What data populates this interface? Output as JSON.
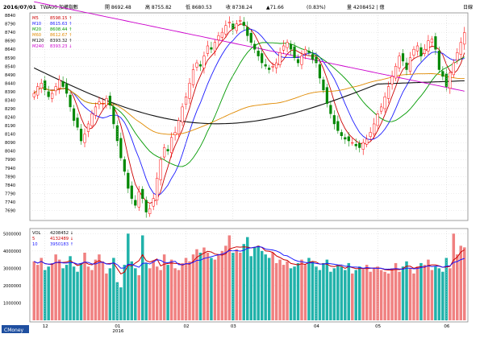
{
  "header": {
    "date": "2016/07/01",
    "symbol": "TWA00 加權指數",
    "items": [
      {
        "label": "開",
        "value": "8692.48"
      },
      {
        "label": "高",
        "value": "8755.82"
      },
      {
        "label": "低",
        "value": "8680.53"
      },
      {
        "label": "收",
        "value": "8738.24"
      },
      {
        "label": "",
        "value": "▲71.66"
      },
      {
        "label": "",
        "value": "(0.83%)"
      },
      {
        "label": "量",
        "value": "4208452 | 億"
      }
    ],
    "period": "日線"
  },
  "price_legend": [
    {
      "name": "M5",
      "value": "8598.15 ↑",
      "color": "#cc0000"
    },
    {
      "name": "M10",
      "value": "8615.63 ↑",
      "color": "#1a1aff"
    },
    {
      "name": "M20",
      "value": "8608.44 ↑",
      "color": "#009900"
    },
    {
      "name": "M60",
      "value": "8612.67 ↑",
      "color": "#e08a00"
    },
    {
      "name": "M120",
      "value": "8393.32 ↑",
      "color": "#111111"
    },
    {
      "name": "M240",
      "value": "8393.23 ↓",
      "color": "#cc00cc"
    }
  ],
  "volume_legend": [
    {
      "name": "VOL",
      "value": "4208452 ↓",
      "color": "#111111"
    },
    {
      "name": "5",
      "value": "4132489 ↓",
      "color": "#cc0000"
    },
    {
      "name": "10",
      "value": "3950183 ↑",
      "color": "#1a1aff"
    }
  ],
  "footer": {
    "brand": "CMoney"
  },
  "chart_data": [
    {
      "type": "candlestick",
      "y_ticks": [
        "8840",
        "8790",
        "8740",
        "8690",
        "8640",
        "8590",
        "8540",
        "8490",
        "8440",
        "8390",
        "8340",
        "8290",
        "8240",
        "8190",
        "8140",
        "8090",
        "8040",
        "7990",
        "7940",
        "7890",
        "7840",
        "7790",
        "7740",
        "7690"
      ],
      "ylim": [
        7640,
        8845
      ],
      "x_ticks": [
        {
          "label": "12",
          "index": 3
        },
        {
          "label": "01",
          "index": 23
        },
        {
          "label": "2016",
          "index": 23
        },
        {
          "label": "02",
          "index": 42
        },
        {
          "label": "03",
          "index": 55
        },
        {
          "label": "04",
          "index": 78
        },
        {
          "label": "05",
          "index": 95
        },
        {
          "label": "06",
          "index": 114
        }
      ],
      "up_color": "#ff0000",
      "down_color": "#008800",
      "close": [
        8380,
        8420,
        8440,
        8400,
        8360,
        8380,
        8420,
        8460,
        8420,
        8380,
        8300,
        8220,
        8180,
        8100,
        8140,
        8200,
        8260,
        8300,
        8330,
        8320,
        8350,
        8310,
        8200,
        8100,
        8000,
        7920,
        7820,
        7760,
        7720,
        7800,
        7760,
        7680,
        7700,
        7760,
        7880,
        7990,
        8060,
        8040,
        8120,
        8150,
        8220,
        8300,
        8360,
        8440,
        8520,
        8560,
        8540,
        8600,
        8660,
        8640,
        8680,
        8720,
        8740,
        8780,
        8800,
        8760,
        8790,
        8810,
        8780,
        8720,
        8680,
        8640,
        8600,
        8560,
        8540,
        8520,
        8540,
        8560,
        8620,
        8660,
        8680,
        8640,
        8590,
        8560,
        8600,
        8640,
        8620,
        8580,
        8560,
        8470,
        8400,
        8320,
        8260,
        8200,
        8160,
        8130,
        8110,
        8100,
        8090,
        8070,
        8060,
        8090,
        8110,
        8150,
        8200,
        8260,
        8300,
        8360,
        8420,
        8480,
        8540,
        8600,
        8570,
        8520,
        8590,
        8640,
        8660,
        8600,
        8640,
        8690,
        8700,
        8640,
        8520,
        8480,
        8420,
        8500,
        8560,
        8620,
        8680,
        8738
      ],
      "ma": [
        {
          "name": "M5",
          "color": "#cc0000",
          "values": []
        },
        {
          "name": "M10",
          "color": "#1a1aff",
          "values": []
        },
        {
          "name": "M20",
          "color": "#009900",
          "values": []
        },
        {
          "name": "M60",
          "color": "#e08a00",
          "values": []
        },
        {
          "name": "M120",
          "color": "#111111",
          "values": []
        },
        {
          "name": "M240",
          "color": "#cc00cc",
          "values": []
        }
      ]
    },
    {
      "type": "bar",
      "title": "VOL",
      "y_ticks": [
        "5000000",
        "4000000",
        "3000000",
        "2000000",
        "1000000"
      ],
      "ylim": [
        0,
        5200000
      ],
      "up_color": "#f08080",
      "down_color": "#20b2aa",
      "values": [
        3400000,
        3200000,
        3600000,
        2900000,
        3100000,
        3300000,
        3800000,
        3500000,
        3000000,
        3200000,
        3700000,
        3100000,
        2800000,
        3300000,
        3900000,
        3100000,
        2900000,
        3500000,
        3800000,
        3400000,
        2700000,
        3000000,
        3600000,
        2200000,
        1900000,
        3200000,
        5000000,
        3400000,
        3000000,
        2600000,
        4900000,
        3300000,
        3000000,
        3400000,
        3100000,
        2900000,
        3800000,
        3200000,
        3500000,
        3000000,
        2900000,
        3300000,
        3600000,
        3400000,
        3800000,
        4100000,
        3900000,
        4200000,
        3900000,
        3600000,
        3500000,
        3800000,
        4000000,
        4300000,
        4900000,
        3900000,
        4100000,
        3900000,
        4400000,
        4800000,
        3700000,
        4200000,
        4300000,
        4000000,
        3800000,
        3600000,
        3900000,
        3300000,
        3500000,
        3200000,
        3400000,
        3000000,
        3100000,
        3300000,
        3500000,
        3200000,
        3600000,
        3400000,
        3100000,
        2900000,
        3300000,
        3500000,
        2800000,
        3000000,
        3200000,
        3100000,
        2900000,
        3300000,
        2700000,
        2900000,
        3100000,
        3000000,
        3200000,
        2800000,
        3000000,
        3100000,
        2900000,
        2800000,
        2700000,
        3000000,
        3300000,
        2800000,
        3100000,
        3400000,
        3000000,
        2700000,
        3100000,
        3300000,
        3200000,
        3500000,
        2900000,
        3100000,
        3000000,
        2800000,
        3600000,
        3000000,
        5000000,
        3800000,
        4300000,
        4208452
      ],
      "series": [
        {
          "name": "5",
          "color": "#cc0000",
          "values": []
        },
        {
          "name": "10",
          "color": "#1a1aff",
          "values": []
        }
      ]
    }
  ]
}
